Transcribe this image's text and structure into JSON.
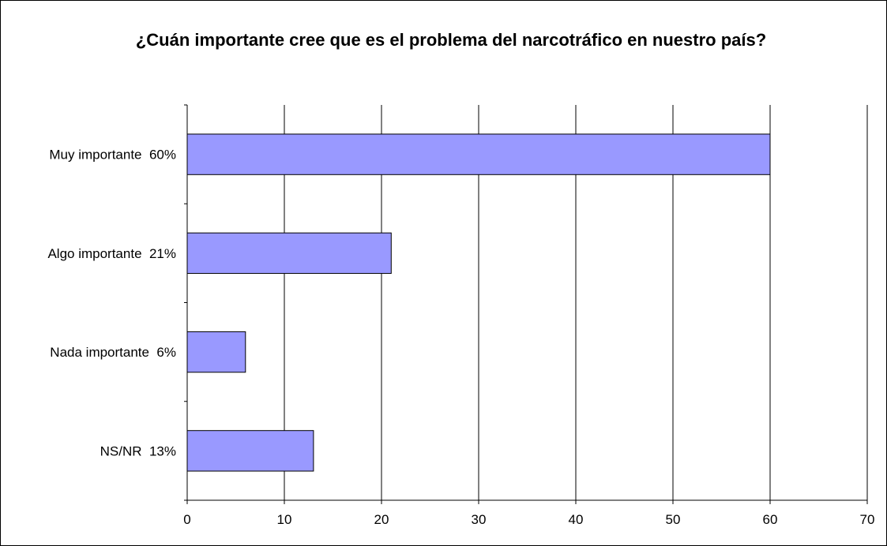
{
  "chart_data": {
    "type": "bar",
    "orientation": "horizontal",
    "title": "¿Cuán importante cree que es el problema del narcotráfico en nuestro país?",
    "categories": [
      "Muy importante  60%",
      "Algo importante  21%",
      "Nada importante  6%",
      "NS/NR  13%"
    ],
    "values": [
      60,
      21,
      6,
      13
    ],
    "xlim": [
      0,
      70
    ],
    "xticks": [
      0,
      10,
      20,
      30,
      40,
      50,
      60,
      70
    ],
    "xticklabels": [
      "0",
      "10",
      "20",
      "30",
      "40",
      "50",
      "60",
      "70"
    ],
    "grid": "vertical",
    "legend": "none",
    "bar_color": "#9999ff",
    "bar_edge_color": "#000000"
  }
}
